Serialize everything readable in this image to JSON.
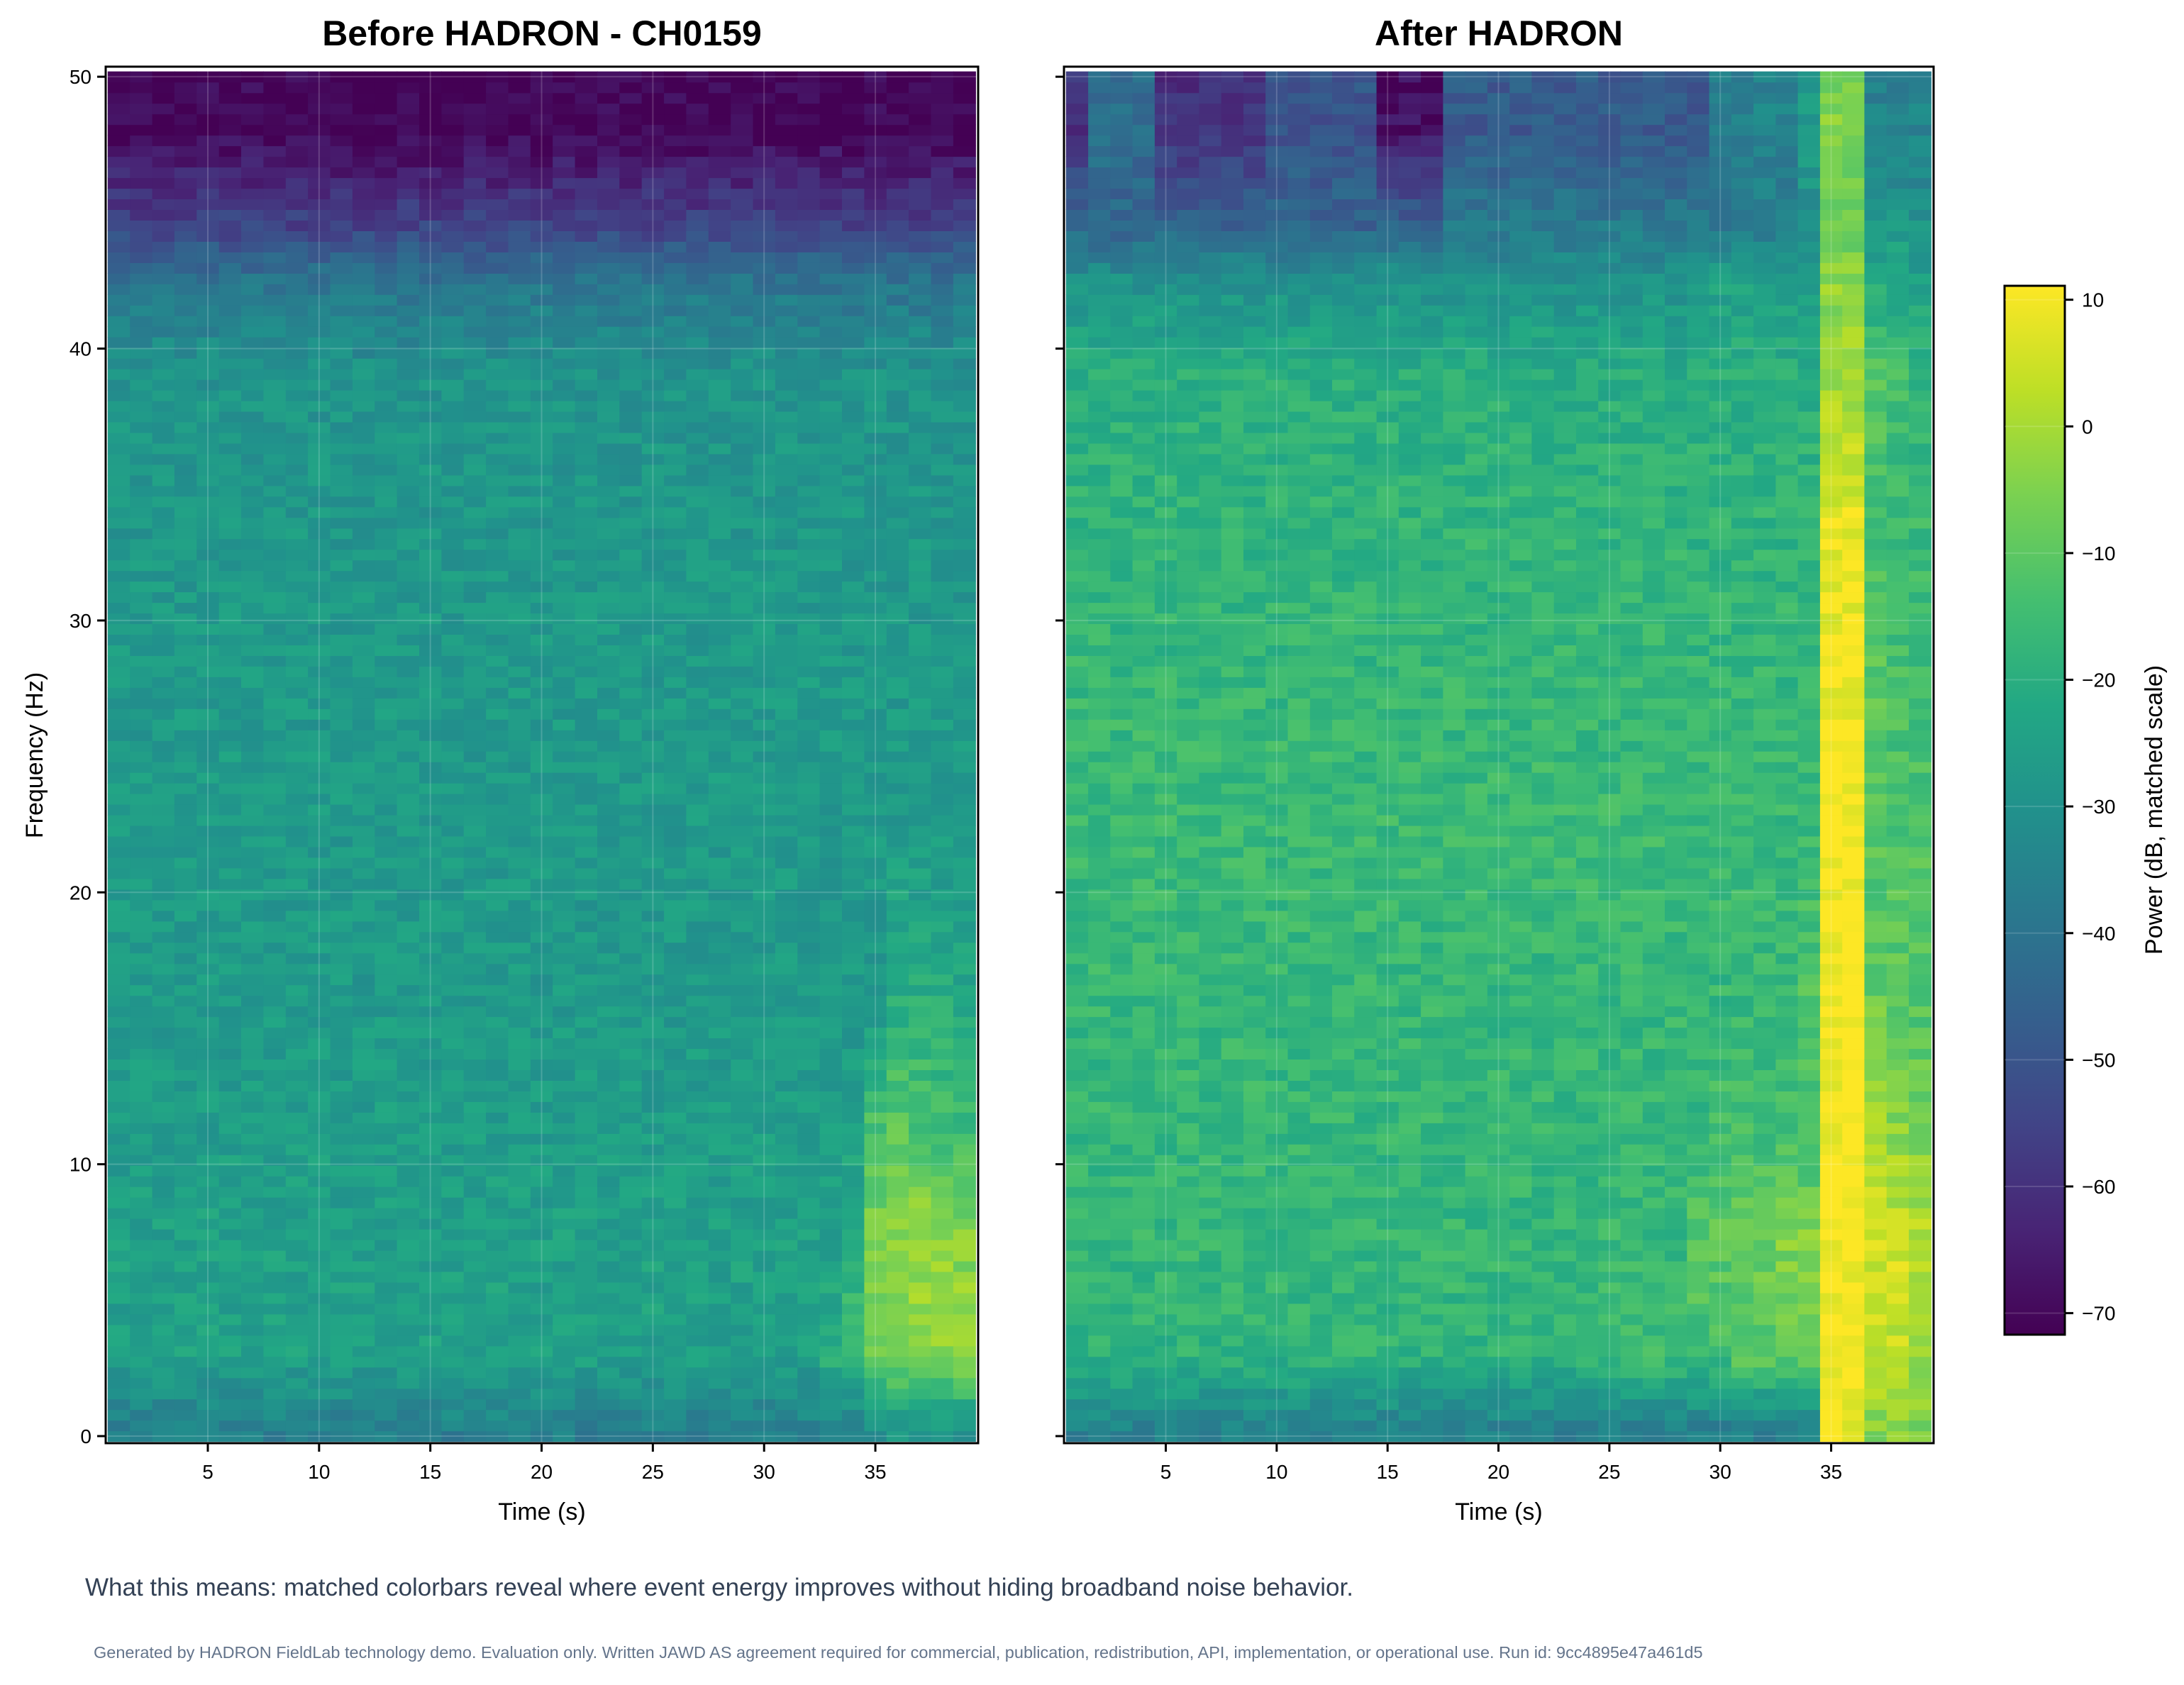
{
  "chart_data": [
    {
      "type": "heatmap",
      "title": "Before HADRON - CH0159",
      "xlabel": "Time (s)",
      "ylabel": "Frequency (Hz)",
      "xlim": [
        0.41,
        39.62
      ],
      "ylim": [
        -0.26,
        50.37
      ],
      "xticks": [
        "5",
        "10",
        "15",
        "20",
        "25",
        "30",
        "35"
      ],
      "yticks": [
        "0",
        "10",
        "20",
        "30",
        "40",
        "50"
      ],
      "grid": true,
      "time_centers_s": [
        1,
        2,
        3,
        4,
        5,
        6,
        7,
        8,
        9,
        10,
        11,
        12,
        13,
        14,
        15,
        16,
        17,
        18,
        19,
        20,
        21,
        22,
        23,
        24,
        25,
        26,
        27,
        28,
        29,
        30,
        31,
        32,
        33,
        34,
        35,
        36,
        37,
        38,
        39
      ],
      "freq_resolution_hz": 0.390625,
      "freq_band_centers_hz": [
        0.2,
        3,
        7,
        11,
        16,
        22,
        28,
        34,
        39,
        42.5,
        44.5,
        48
      ],
      "power_db": [
        [
          -36,
          -36,
          -36,
          -36,
          -36,
          -36,
          -36,
          -36,
          -36,
          -36,
          -36,
          -36,
          -36,
          -36,
          -36,
          -36,
          -36,
          -36,
          -36,
          -36,
          -36,
          -36,
          -36,
          -36,
          -36,
          -36,
          -36,
          -36,
          -36,
          -36,
          -36,
          -36,
          -36,
          -36,
          -30,
          -28,
          -28,
          -29,
          -30
        ],
        [
          -25,
          -25,
          -25,
          -25,
          -25,
          -25,
          -25,
          -25,
          -25,
          -25,
          -25,
          -25,
          -25,
          -25,
          -25,
          -25,
          -25,
          -25,
          -25,
          -25,
          -25,
          -25,
          -25,
          -25,
          -25,
          -25,
          -25,
          -25,
          -25,
          -25,
          -25,
          -25,
          -20,
          -18,
          -8,
          -6,
          -5,
          -4,
          -3
        ],
        [
          -25,
          -25,
          -25,
          -25,
          -25,
          -25,
          -25,
          -25,
          -25,
          -25,
          -25,
          -25,
          -25,
          -25,
          -25,
          -25,
          -25,
          -25,
          -25,
          -25,
          -25,
          -25,
          -25,
          -25,
          -25,
          -25,
          -25,
          -25,
          -25,
          -25,
          -25,
          -25,
          -25,
          -18,
          -4,
          -2,
          0,
          -1,
          -4
        ],
        [
          -26,
          -26,
          -26,
          -26,
          -26,
          -26,
          -26,
          -26,
          -26,
          -26,
          -26,
          -26,
          -26,
          -26,
          -26,
          -26,
          -26,
          -26,
          -26,
          -26,
          -26,
          -26,
          -26,
          -26,
          -26,
          -26,
          -26,
          -26,
          -26,
          -26,
          -26,
          -26,
          -26,
          -26,
          -12,
          -10,
          -12,
          -14,
          -15
        ],
        [
          -27,
          -27,
          -27,
          -27,
          -27,
          -27,
          -27,
          -27,
          -27,
          -27,
          -27,
          -27,
          -27,
          -27,
          -27,
          -27,
          -27,
          -27,
          -27,
          -27,
          -27,
          -27,
          -27,
          -27,
          -27,
          -27,
          -27,
          -27,
          -27,
          -27,
          -27,
          -27,
          -27,
          -27,
          -27,
          -20,
          -20,
          -21,
          -22
        ],
        [
          -27,
          -27,
          -27,
          -27,
          -27,
          -27,
          -27,
          -27,
          -27,
          -27,
          -27,
          -27,
          -27,
          -27,
          -27,
          -27,
          -27,
          -27,
          -27,
          -27,
          -27,
          -27,
          -27,
          -27,
          -27,
          -27,
          -27,
          -27,
          -27,
          -27,
          -27,
          -27,
          -27,
          -27,
          -27,
          -27,
          -27,
          -27,
          -27
        ],
        [
          -27,
          -27,
          -27,
          -27,
          -27,
          -27,
          -27,
          -27,
          -27,
          -27,
          -27,
          -27,
          -27,
          -27,
          -27,
          -27,
          -27,
          -27,
          -27,
          -27,
          -27,
          -27,
          -27,
          -27,
          -27,
          -27,
          -27,
          -27,
          -27,
          -27,
          -27,
          -27,
          -27,
          -27,
          -27,
          -27,
          -27,
          -27,
          -27
        ],
        [
          -28,
          -28,
          -28,
          -28,
          -28,
          -28,
          -28,
          -28,
          -28,
          -28,
          -28,
          -28,
          -28,
          -28,
          -28,
          -28,
          -28,
          -28,
          -28,
          -28,
          -28,
          -28,
          -28,
          -28,
          -28,
          -28,
          -28,
          -28,
          -28,
          -28,
          -28,
          -28,
          -28,
          -28,
          -28,
          -28,
          -28,
          -28,
          -28
        ],
        [
          -29,
          -29,
          -29,
          -29,
          -29,
          -29,
          -29,
          -29,
          -29,
          -29,
          -29,
          -29,
          -29,
          -29,
          -29,
          -29,
          -29,
          -29,
          -29,
          -29,
          -29,
          -29,
          -29,
          -29,
          -29,
          -29,
          -29,
          -29,
          -29,
          -29,
          -29,
          -29,
          -29,
          -29,
          -29,
          -29,
          -29,
          -29,
          -29
        ],
        [
          -40,
          -40,
          -40,
          -40,
          -40,
          -40,
          -40,
          -40,
          -40,
          -40,
          -40,
          -40,
          -40,
          -40,
          -40,
          -40,
          -40,
          -40,
          -40,
          -40,
          -40,
          -40,
          -40,
          -40,
          -40,
          -40,
          -40,
          -40,
          -40,
          -40,
          -40,
          -40,
          -40,
          -40,
          -40,
          -40,
          -40,
          -40,
          -40
        ],
        [
          -55,
          -55,
          -55,
          -55,
          -55,
          -55,
          -55,
          -55,
          -55,
          -55,
          -55,
          -55,
          -55,
          -55,
          -55,
          -55,
          -55,
          -55,
          -55,
          -55,
          -55,
          -55,
          -55,
          -55,
          -55,
          -55,
          -55,
          -55,
          -55,
          -55,
          -55,
          -55,
          -55,
          -55,
          -55,
          -55,
          -55,
          -55,
          -55
        ],
        [
          -71,
          -71,
          -71,
          -71,
          -71,
          -71,
          -71,
          -71,
          -71,
          -71,
          -71,
          -71,
          -71,
          -71,
          -71,
          -71,
          -71,
          -71,
          -71,
          -71,
          -71,
          -71,
          -71,
          -71,
          -71,
          -71,
          -71,
          -71,
          -71,
          -71,
          -71,
          -71,
          -71,
          -71,
          -71,
          -71,
          -71,
          -71,
          -71
        ]
      ]
    },
    {
      "type": "heatmap",
      "title": "After HADRON",
      "xlabel": "Time (s)",
      "xlim": [
        0.41,
        39.62
      ],
      "ylim": [
        -0.26,
        50.37
      ],
      "xticks": [
        "5",
        "10",
        "15",
        "20",
        "25",
        "30",
        "35"
      ],
      "grid": true,
      "time_centers_s": [
        1,
        2,
        3,
        4,
        5,
        6,
        7,
        8,
        9,
        10,
        11,
        12,
        13,
        14,
        15,
        16,
        17,
        18,
        19,
        20,
        21,
        22,
        23,
        24,
        25,
        26,
        27,
        28,
        29,
        30,
        31,
        32,
        33,
        34,
        35,
        36,
        37,
        38,
        39
      ],
      "freq_resolution_hz": 0.390625,
      "freq_band_centers_hz": [
        0.2,
        3,
        7,
        11,
        16,
        22,
        28,
        34,
        39,
        42.5,
        44.5,
        48
      ],
      "power_db": [
        [
          -36,
          -36,
          -36,
          -36,
          -36,
          -36,
          -36,
          -36,
          -36,
          -36,
          -36,
          -36,
          -36,
          -36,
          -36,
          -36,
          -36,
          -36,
          -36,
          -36,
          -36,
          -36,
          -36,
          -36,
          -36,
          -36,
          -36,
          -36,
          -36,
          -36,
          -36,
          -36,
          -36,
          -36,
          10,
          10,
          -5,
          -5,
          -5
        ],
        [
          -18,
          -18,
          -18,
          -18,
          -18,
          -18,
          -18,
          -18,
          -18,
          -18,
          -18,
          -18,
          -18,
          -18,
          -18,
          -18,
          -18,
          -18,
          -18,
          -18,
          -18,
          -18,
          -18,
          -18,
          -15,
          -15,
          -15,
          -15,
          -15,
          -15,
          -10,
          -10,
          -10,
          -10,
          11,
          11,
          4,
          3,
          0
        ],
        [
          -17,
          -17,
          -17,
          -17,
          -17,
          -17,
          -17,
          -17,
          -17,
          -17,
          -17,
          -17,
          -17,
          -17,
          -17,
          -17,
          -17,
          -17,
          -17,
          -17,
          -17,
          -17,
          -17,
          -17,
          -17,
          -17,
          -17,
          -17,
          -10,
          -10,
          -8,
          -8,
          -5,
          -3,
          11,
          11,
          6,
          5,
          3
        ],
        [
          -17,
          -17,
          -17,
          -17,
          -17,
          -17,
          -17,
          -17,
          -17,
          -17,
          -17,
          -17,
          -17,
          -17,
          -17,
          -17,
          -17,
          -17,
          -17,
          -17,
          -17,
          -17,
          -17,
          -17,
          -17,
          -17,
          -17,
          -17,
          -17,
          -14,
          -14,
          -14,
          -14,
          -14,
          11,
          11,
          0,
          -3,
          -6
        ],
        [
          -17,
          -17,
          -17,
          -17,
          -17,
          -17,
          -17,
          -17,
          -17,
          -17,
          -17,
          -17,
          -17,
          -17,
          -17,
          -17,
          -17,
          -17,
          -17,
          -17,
          -17,
          -17,
          -17,
          -17,
          -17,
          -17,
          -17,
          -17,
          -17,
          -17,
          -17,
          -17,
          -17,
          -12,
          11,
          11,
          -8,
          -10,
          -12
        ],
        [
          -16,
          -16,
          -16,
          -16,
          -16,
          -16,
          -16,
          -16,
          -16,
          -16,
          -16,
          -16,
          -16,
          -16,
          -16,
          -16,
          -16,
          -16,
          -16,
          -16,
          -16,
          -16,
          -16,
          -16,
          -16,
          -16,
          -16,
          -16,
          -16,
          -16,
          -16,
          -16,
          -16,
          -16,
          11,
          11,
          -12,
          -12,
          -12
        ],
        [
          -17,
          -17,
          -17,
          -17,
          -17,
          -17,
          -17,
          -17,
          -17,
          -17,
          -17,
          -17,
          -17,
          -17,
          -17,
          -17,
          -17,
          -17,
          -17,
          -17,
          -17,
          -17,
          -17,
          -17,
          -17,
          -17,
          -17,
          -17,
          -17,
          -17,
          -17,
          -17,
          -17,
          -17,
          10,
          10,
          -10,
          -14,
          -15
        ],
        [
          -18,
          -18,
          -18,
          -18,
          -18,
          -18,
          -18,
          -18,
          -18,
          -18,
          -18,
          -18,
          -18,
          -18,
          -18,
          -18,
          -18,
          -18,
          -18,
          -18,
          -18,
          -18,
          -18,
          -18,
          -18,
          -18,
          -18,
          -18,
          -18,
          -18,
          -18,
          -18,
          -18,
          -18,
          8,
          8,
          -14,
          -15,
          -16
        ],
        [
          -20,
          -20,
          -20,
          -20,
          -20,
          -20,
          -20,
          -20,
          -20,
          -20,
          -20,
          -20,
          -20,
          -20,
          -20,
          -20,
          -20,
          -20,
          -20,
          -20,
          -20,
          -20,
          -20,
          -20,
          -20,
          -20,
          -20,
          -20,
          -20,
          -20,
          -20,
          -20,
          -20,
          -20,
          -2,
          -2,
          -12,
          -15,
          -18
        ],
        [
          -30,
          -30,
          -30,
          -30,
          -30,
          -30,
          -30,
          -30,
          -30,
          -30,
          -30,
          -30,
          -30,
          -30,
          -30,
          -30,
          -30,
          -30,
          -30,
          -30,
          -30,
          -30,
          -30,
          -30,
          -30,
          -30,
          -30,
          -30,
          -30,
          -25,
          -25,
          -25,
          -25,
          -25,
          -3,
          -3,
          -22,
          -22,
          -24
        ],
        [
          -45,
          -45,
          -45,
          -45,
          -45,
          -45,
          -45,
          -45,
          -45,
          -45,
          -45,
          -45,
          -45,
          -45,
          -45,
          -45,
          -45,
          -38,
          -38,
          -38,
          -38,
          -38,
          -38,
          -38,
          -38,
          -38,
          -38,
          -38,
          -38,
          -38,
          -38,
          -38,
          -38,
          -30,
          -8,
          -8,
          -28,
          -28,
          -30
        ],
        [
          -60,
          -42,
          -42,
          -42,
          -60,
          -60,
          -60,
          -60,
          -60,
          -50,
          -50,
          -50,
          -50,
          -50,
          -68,
          -68,
          -68,
          -48,
          -48,
          -48,
          -48,
          -48,
          -48,
          -48,
          -48,
          -48,
          -48,
          -48,
          -48,
          -35,
          -35,
          -35,
          -35,
          -28,
          -5,
          -5,
          -35,
          -35,
          -35
        ]
      ]
    }
  ],
  "colorbar": {
    "label": "Power (dB, matched scale)",
    "range": [
      -71.7,
      11.1
    ],
    "ticks": [
      "10",
      "0",
      "−10",
      "−20",
      "−30",
      "−40",
      "−50",
      "−60",
      "−70"
    ],
    "colormap": "viridis"
  },
  "footer": {
    "note": "What this means: matched colorbars reveal where event energy improves without hiding broadband noise behavior.",
    "disclaimer": "Generated by HADRON FieldLab technology demo. Evaluation only. Written JAWD AS agreement required for commercial, publication, redistribution, API, implementation, or operational use. Run id: 9cc4895e47a461d5"
  }
}
